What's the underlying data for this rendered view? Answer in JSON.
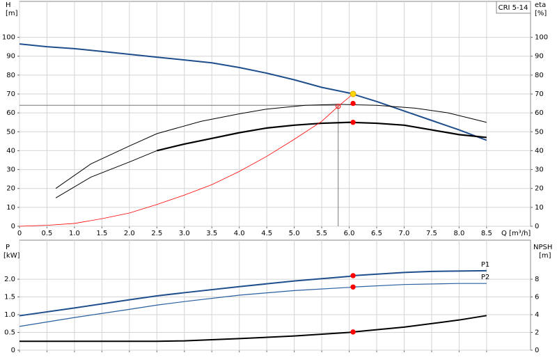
{
  "chart_data": [
    {
      "type": "line",
      "y_label": "H",
      "y_unit": "[m]",
      "y2_label": "eta",
      "y2_unit": "[%]",
      "x_label": "Q [m³/h]",
      "legend_box": "CRI 5-14",
      "xlim": [
        0,
        9.3
      ],
      "xticks": [
        0,
        0.5,
        {
          "value": 1,
          "label": "1.0"
        },
        1.5,
        {
          "value": 2,
          "label": "2.0"
        },
        2.5,
        {
          "value": 3,
          "label": "3.0"
        },
        3.5,
        {
          "value": 4,
          "label": "4.0"
        },
        4.5,
        {
          "value": 5,
          "label": "5.0"
        },
        5.5,
        {
          "value": 6,
          "label": "6.0"
        },
        6.5,
        {
          "value": 7,
          "label": "7.0"
        },
        7.5,
        {
          "value": 8,
          "label": "8.0"
        },
        8.5
      ],
      "ylim": [
        0,
        119
      ],
      "yticks": [
        0,
        10,
        20,
        30,
        40,
        50,
        60,
        70,
        80,
        90,
        100
      ],
      "y2lim": [
        0,
        119
      ],
      "y2ticks": [
        0,
        10,
        20,
        30,
        40,
        50,
        60,
        70,
        80,
        90,
        100
      ],
      "grid": true,
      "series": [
        {
          "color": "#1f4e8c",
          "width": 2,
          "x": [
            0,
            0.5,
            1,
            1.5,
            2,
            2.5,
            3,
            3.5,
            4,
            4.5,
            5,
            5.5,
            6,
            6.5,
            7,
            7.5,
            8,
            8.5
          ],
          "values": [
            96.5,
            95,
            94,
            92.5,
            91,
            89.5,
            88,
            86.5,
            84,
            81,
            77.5,
            73.5,
            70.5,
            66,
            61,
            56,
            51,
            45.5
          ]
        },
        {
          "color": "#000000",
          "width": 1,
          "axis": "y2",
          "x": [
            0.66,
            1.3,
            2,
            2.5,
            3.3,
            4,
            4.5,
            5.2,
            5.8,
            6.5,
            7.2,
            7.8,
            8.5
          ],
          "values": [
            20,
            33,
            42.5,
            49,
            55.5,
            59.5,
            62,
            64,
            64.5,
            64,
            62.5,
            60,
            55
          ]
        },
        {
          "color": "#000000",
          "width": 1,
          "axis": "y2",
          "x": [
            0.66,
            1.3,
            2,
            2.5
          ],
          "values": [
            15,
            26,
            34,
            40
          ]
        },
        {
          "color": "#000000",
          "width": 2.2,
          "axis": "y2",
          "x": [
            2.5,
            3,
            3.5,
            4,
            4.5,
            5,
            5.5,
            6,
            6.5,
            7,
            7.5,
            8,
            8.5
          ],
          "values": [
            40,
            43.5,
            46.5,
            49.5,
            52,
            53.5,
            54.5,
            55,
            54.5,
            53.5,
            51,
            48.5,
            47
          ]
        },
        {
          "color": "#ff0000",
          "width": 0.8,
          "x": [
            0,
            0.5,
            1,
            1.5,
            2,
            2.5,
            3,
            3.5,
            4,
            4.5,
            5,
            5.5,
            5.8,
            6.07
          ],
          "values": [
            0,
            0.5,
            1.5,
            4,
            7,
            11.5,
            16.5,
            22,
            29,
            37,
            46,
            55.5,
            63.5,
            70
          ]
        }
      ],
      "markers": [
        {
          "x": 6.07,
          "y": 70,
          "color": "#ffd700"
        },
        {
          "x": 6.07,
          "y": 65,
          "color": "#ff0000",
          "axis": "y2"
        },
        {
          "x": 6.07,
          "y": 55,
          "color": "#ff0000",
          "axis": "y2"
        },
        {
          "x": 5.8,
          "y": 63.5,
          "color": "none"
        }
      ],
      "crosshair": {
        "x": 5.8,
        "y": 64
      }
    },
    {
      "type": "line",
      "y_label": "P",
      "y_unit": "[kW]",
      "y2_label": "NPSH",
      "y2_unit": "[m]",
      "xlim": [
        0,
        9.3
      ],
      "ylim": [
        0,
        3.1
      ],
      "yticks": [
        0,
        0.5,
        {
          "value": 1,
          "label": "1.0"
        },
        1.5,
        {
          "value": 2,
          "label": "2.0"
        }
      ],
      "y2lim": [
        0,
        12.4
      ],
      "y2ticks": [
        0,
        2,
        4,
        6,
        8
      ],
      "grid": true,
      "series": [
        {
          "name": "P1",
          "color": "#1f4e8c",
          "width": 2,
          "x": [
            0,
            1,
            2,
            2.5,
            3,
            4,
            5,
            6,
            6.07,
            7,
            7.5,
            8.5
          ],
          "values": [
            0.97,
            1.19,
            1.42,
            1.53,
            1.62,
            1.79,
            1.95,
            2.08,
            2.1,
            2.19,
            2.22,
            2.24
          ]
        },
        {
          "name": "P2",
          "color": "#2a5fa0",
          "width": 1.2,
          "x": [
            0,
            1,
            2,
            2.5,
            3,
            4,
            5,
            6,
            6.07,
            7,
            8,
            8.5
          ],
          "values": [
            0.67,
            0.92,
            1.15,
            1.27,
            1.37,
            1.55,
            1.68,
            1.77,
            1.78,
            1.85,
            1.88,
            1.88
          ]
        },
        {
          "color": "#000000",
          "width": 2,
          "axis": "y2",
          "x": [
            0,
            1,
            2,
            2.5,
            3,
            4,
            5,
            6,
            6.07,
            7,
            8,
            8.5
          ],
          "values": [
            1,
            1,
            1,
            1,
            1.05,
            1.3,
            1.6,
            2,
            2.05,
            2.6,
            3.4,
            3.9
          ]
        }
      ],
      "markers": [
        {
          "x": 6.07,
          "y": 2.1,
          "color": "#ff0000"
        },
        {
          "x": 6.07,
          "y": 1.78,
          "color": "#ff0000"
        },
        {
          "x": 6.07,
          "y": 2.05,
          "color": "#ff0000",
          "axis": "y2"
        }
      ]
    }
  ]
}
